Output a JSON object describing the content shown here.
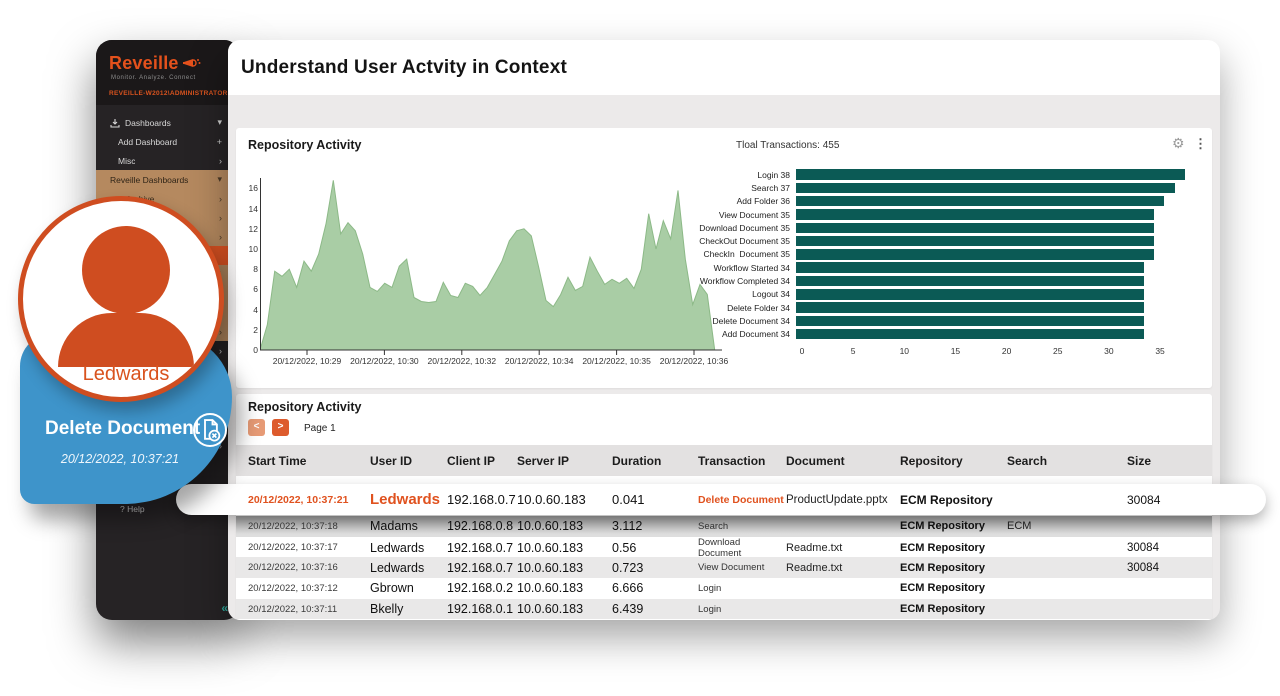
{
  "icons": {
    "gear": "⚙",
    "kebab": "⋮",
    "collapse": "«",
    "help_prefix": "?"
  },
  "glyphs": {
    "chevron-down": "▾",
    "chevron-right": "›",
    "plus": "+",
    "check": "✓"
  },
  "colors": {
    "accent_orange": "#DF5423",
    "bar_teal": "#0B5A55",
    "area_green": "#A9CDA5",
    "callout_blue": "#3E94CA",
    "sidebar_tan": "#B5895F",
    "sidebar_dark": "#262325"
  },
  "sidebar": {
    "logo": "Reveille",
    "tagline": "Monitor. Analyze. Connect",
    "user": "REVEILLE-W2012\\ADMINISTRATOR",
    "help": "Help",
    "items": [
      {
        "label": "Dashboards",
        "style": "dark",
        "lead": "dashboards-icon",
        "trail": "chevron-down"
      },
      {
        "label": "Add Dashboard",
        "style": "dark-sub",
        "trail": "plus"
      },
      {
        "label": "Misc",
        "style": "dark-sub",
        "trail": "chevron-right"
      },
      {
        "label": "Reveille Dashboards",
        "style": "tan",
        "trail": "chevron-down"
      },
      {
        "label": "Archive",
        "style": "tan-sub",
        "trail": "chevron-right"
      },
      {
        "label": "",
        "style": "tan-sub",
        "trail": "chevron-right"
      },
      {
        "label": "",
        "style": "tan-sub",
        "trail": "chevron-right"
      },
      {
        "label": "",
        "style": "active",
        "trail": ""
      },
      {
        "label": "",
        "style": "tan-sub",
        "trail": "check"
      },
      {
        "label": "",
        "style": "tan-sub",
        "trail": "chevron-right"
      },
      {
        "label": "",
        "style": "tan-sub",
        "trail": "chevron-right"
      },
      {
        "label": "",
        "style": "tan-sub",
        "trail": "chevron-right"
      },
      {
        "label": "",
        "style": "dark-sub",
        "trail": "chevron-right"
      },
      {
        "label": "",
        "style": "dark-sub",
        "trail": "chevron-right"
      },
      {
        "label": "",
        "style": "dark-sub",
        "trail": "chevron-right"
      },
      {
        "label": "",
        "style": "dark-sub",
        "trail": "chevron-right"
      },
      {
        "label": "",
        "style": "dark-sub",
        "trail": "chevron-right"
      },
      {
        "label": "",
        "style": "dark-sub",
        "trail": "chevron-right"
      }
    ]
  },
  "header": {
    "title": "Understand User Actvity in Context"
  },
  "panel1": {
    "title": "Repository Activity",
    "total_label": "Tloal Transactions: 455",
    "legend": "Repository Activity"
  },
  "chart_data": [
    {
      "type": "area",
      "title": "Repository Activity",
      "series_name": "Repository Activity",
      "x_labels": [
        "20/12/2022, 10:29",
        "20/12/2022, 10:30",
        "20/12/2022, 10:32",
        "20/12/2022, 10:34",
        "20/12/2022, 10:35",
        "20/12/2022, 10:36"
      ],
      "y_ticks": [
        0,
        2,
        4,
        6,
        8,
        10,
        12,
        14,
        16
      ],
      "ylim": [
        0,
        17
      ],
      "values": [
        0,
        2.5,
        7.8,
        7.3,
        8,
        6.2,
        8.8,
        7.8,
        9.5,
        12.5,
        16.8,
        11.5,
        12.6,
        11.8,
        9.5,
        6.2,
        5.8,
        6.6,
        6.2,
        8.3,
        9,
        5.2,
        4.8,
        4.7,
        4.8,
        6.7,
        5.4,
        5.2,
        6.6,
        6.3,
        5.4,
        6.2,
        7.5,
        8.8,
        10.8,
        11.8,
        12,
        11.3,
        8.2,
        4.9,
        4.3,
        5.5,
        7.2,
        5.9,
        6.3,
        9.2,
        7.8,
        6.5,
        7,
        6.6,
        7.1,
        6.1,
        8,
        13.5,
        10,
        12.8,
        11,
        15.8,
        9,
        4.5,
        6.5,
        5.5,
        0,
        0
      ],
      "fill_color": "#A9CDA5",
      "grid": false,
      "legend_position": "bottom-left"
    },
    {
      "type": "bar",
      "orientation": "horizontal",
      "categories": [
        "Login",
        "Search",
        "Add Folder",
        "View Document",
        "Download Document",
        "CheckOut Document",
        "CheckIn  Document",
        "Workflow Started",
        "Workflow Completed",
        "Logout",
        "Delete Folder",
        "Delete Document",
        "Add Document"
      ],
      "values": [
        38,
        37,
        36,
        35,
        35,
        35,
        35,
        34,
        34,
        34,
        34,
        34,
        34
      ],
      "x_ticks": [
        0,
        5,
        10,
        15,
        20,
        25,
        30,
        35
      ],
      "xlim": [
        0,
        38.5
      ],
      "bar_color": "#0B5A55",
      "grid": false
    }
  ],
  "panel2": {
    "title": "Repository Activity",
    "prev_label": "<",
    "next_label": ">",
    "page_label": "Page 1"
  },
  "table": {
    "columns": [
      "Start Time",
      "User ID",
      "Client IP",
      "Server IP",
      "Duration",
      "Transaction",
      "Document",
      "Repository",
      "Search",
      "Size"
    ],
    "rows": [
      {
        "time": "20/12/2022, 10:37:21",
        "user": "Ledwards",
        "client_ip": "192.168.0.7",
        "server_ip": "10.0.60.183",
        "duration": "0.041",
        "transaction": "Delete Document",
        "document": "ProductUpdate.pptx",
        "repository": "ECM Repository",
        "search": "",
        "size": "30084",
        "highlight": true
      },
      {
        "time": "20/12/2022, 10:37:18",
        "user": "Madams",
        "client_ip": "192.168.0.8",
        "server_ip": "10.0.60.183",
        "duration": "3.112",
        "transaction": "Search",
        "document": "",
        "repository": "ECM Repository",
        "search": "ECM",
        "size": ""
      },
      {
        "time": "20/12/2022, 10:37:17",
        "user": "Ledwards",
        "client_ip": "192.168.0.7",
        "server_ip": "10.0.60.183",
        "duration": "0.56",
        "transaction": "Download Document",
        "document": "Readme.txt",
        "repository": "ECM Repository",
        "search": "",
        "size": "30084"
      },
      {
        "time": "20/12/2022, 10:37:16",
        "user": "Ledwards",
        "client_ip": "192.168.0.7",
        "server_ip": "10.0.60.183",
        "duration": "0.723",
        "transaction": "View Document",
        "document": "Readme.txt",
        "repository": "ECM Repository",
        "search": "",
        "size": "30084"
      },
      {
        "time": "20/12/2022, 10:37:12",
        "user": "Gbrown",
        "client_ip": "192.168.0.2",
        "server_ip": "10.0.60.183",
        "duration": "6.666",
        "transaction": "Login",
        "document": "",
        "repository": "ECM Repository",
        "search": "",
        "size": ""
      },
      {
        "time": "20/12/2022, 10:37:11",
        "user": "Bkelly",
        "client_ip": "192.168.0.1",
        "server_ip": "10.0.60.183",
        "duration": "6.439",
        "transaction": "Login",
        "document": "",
        "repository": "ECM Repository",
        "search": "",
        "size": ""
      }
    ]
  },
  "callout": {
    "user": "Ledwards",
    "action": "Delete Document",
    "timestamp": "20/12/2022, 10:37:21"
  }
}
